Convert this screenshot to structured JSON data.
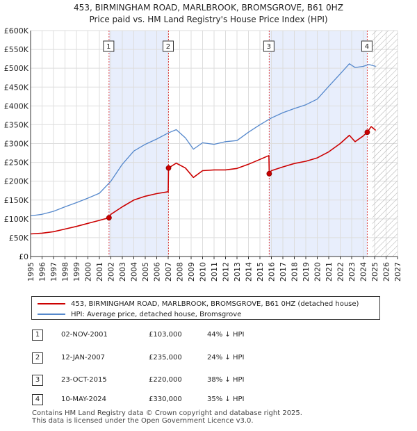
{
  "title": "453, BIRMINGHAM ROAD, MARLBROOK, BROMSGROVE, B61 0HZ",
  "subtitle": "Price paid vs. HM Land Registry's House Price Index (HPI)",
  "colors": {
    "property": "#cc0000",
    "hpi": "#5588cc",
    "shade": "#e8eefc",
    "grid": "#dddddd"
  },
  "legend": {
    "property_label": "453, BIRMINGHAM ROAD, MARLBROOK, BROMSGROVE, B61 0HZ (detached house)",
    "hpi_label": "HPI: Average price, detached house, Bromsgrove"
  },
  "transactions": [
    {
      "num": "1",
      "date": "02-NOV-2001",
      "price": "£103,000",
      "hpi": "44% ↓ HPI",
      "year": 2001.84,
      "value": 103000
    },
    {
      "num": "2",
      "date": "12-JAN-2007",
      "price": "£235,000",
      "hpi": "24% ↓ HPI",
      "year": 2007.03,
      "value": 235000
    },
    {
      "num": "3",
      "date": "23-OCT-2015",
      "price": "£220,000",
      "hpi": "38% ↓ HPI",
      "year": 2015.81,
      "value": 220000
    },
    {
      "num": "4",
      "date": "10-MAY-2024",
      "price": "£330,000",
      "hpi": "35% ↓ HPI",
      "year": 2024.36,
      "value": 330000
    }
  ],
  "footer": {
    "line1": "Contains HM Land Registry data © Crown copyright and database right 2025.",
    "line2": "This data is licensed under the Open Government Licence v3.0."
  },
  "chart_data": {
    "type": "line",
    "title": "453, BIRMINGHAM ROAD, MARLBROOK, BROMSGROVE, B61 0HZ",
    "subtitle": "Price paid vs. HM Land Registry's House Price Index (HPI)",
    "xlim": [
      1995,
      2027
    ],
    "ylim": [
      0,
      600000
    ],
    "x_ticks": [
      "1995",
      "1996",
      "1997",
      "1998",
      "1999",
      "2000",
      "2001",
      "2002",
      "2003",
      "2004",
      "2005",
      "2006",
      "2007",
      "2008",
      "2009",
      "2010",
      "2011",
      "2012",
      "2013",
      "2014",
      "2015",
      "2016",
      "2017",
      "2018",
      "2019",
      "2020",
      "2021",
      "2022",
      "2023",
      "2024",
      "2025",
      "2026",
      "2027"
    ],
    "y_ticks": [
      {
        "value": 0,
        "label": "£0"
      },
      {
        "value": 50000,
        "label": "£50K"
      },
      {
        "value": 100000,
        "label": "£100K"
      },
      {
        "value": 150000,
        "label": "£150K"
      },
      {
        "value": 200000,
        "label": "£200K"
      },
      {
        "value": 250000,
        "label": "£250K"
      },
      {
        "value": 300000,
        "label": "£300K"
      },
      {
        "value": 350000,
        "label": "£350K"
      },
      {
        "value": 400000,
        "label": "£400K"
      },
      {
        "value": 450000,
        "label": "£450K"
      },
      {
        "value": 500000,
        "label": "£500K"
      },
      {
        "value": 550000,
        "label": "£550K"
      },
      {
        "value": 600000,
        "label": "£600K"
      }
    ],
    "grid": true,
    "hatch_from": 2024.8,
    "shaded_periods": [
      [
        2001.84,
        2007.03
      ],
      [
        2015.81,
        2024.36
      ]
    ],
    "series": [
      {
        "name": "HPI: Average price, detached house, Bromsgrove",
        "x": [
          1995,
          1996,
          1997,
          1998,
          1999,
          2000,
          2001,
          2002,
          2003,
          2004,
          2005,
          2006,
          2007,
          2007.7,
          2008.5,
          2009.2,
          2010,
          2011,
          2012,
          2013,
          2014,
          2015,
          2016,
          2017,
          2018,
          2019,
          2020,
          2021,
          2022,
          2022.8,
          2023.3,
          2024,
          2024.5,
          2025.1
        ],
        "values": [
          108000,
          112000,
          120000,
          132000,
          143000,
          155000,
          168000,
          200000,
          245000,
          280000,
          298000,
          312000,
          328000,
          337000,
          315000,
          285000,
          302000,
          298000,
          305000,
          308000,
          330000,
          350000,
          368000,
          382000,
          393000,
          403000,
          418000,
          452000,
          485000,
          512000,
          502000,
          505000,
          510000,
          505000
        ]
      },
      {
        "name": "453, BIRMINGHAM ROAD, MARLBROOK, BROMSGROVE, B61 0HZ (detached house)",
        "x": [
          1995,
          1996,
          1997,
          1998,
          1999,
          2000,
          2001,
          2001.84,
          2002,
          2003,
          2004,
          2005,
          2006,
          2007.0,
          2007.03,
          2007.7,
          2008.5,
          2009.2,
          2010,
          2011,
          2012,
          2013,
          2014,
          2015,
          2015.78,
          2015.81,
          2016,
          2017,
          2018,
          2019,
          2020,
          2021,
          2022,
          2022.8,
          2023.3,
          2024.0,
          2024.36,
          2024.7,
          2025.1
        ],
        "values": [
          60000,
          62000,
          66000,
          73000,
          80000,
          88000,
          96000,
          103000,
          112000,
          132000,
          150000,
          160000,
          167000,
          172000,
          235000,
          248000,
          235000,
          210000,
          228000,
          230000,
          230000,
          234000,
          245000,
          258000,
          268000,
          220000,
          228000,
          238000,
          247000,
          253000,
          262000,
          278000,
          300000,
          322000,
          305000,
          320000,
          330000,
          345000,
          335000
        ]
      }
    ]
  }
}
